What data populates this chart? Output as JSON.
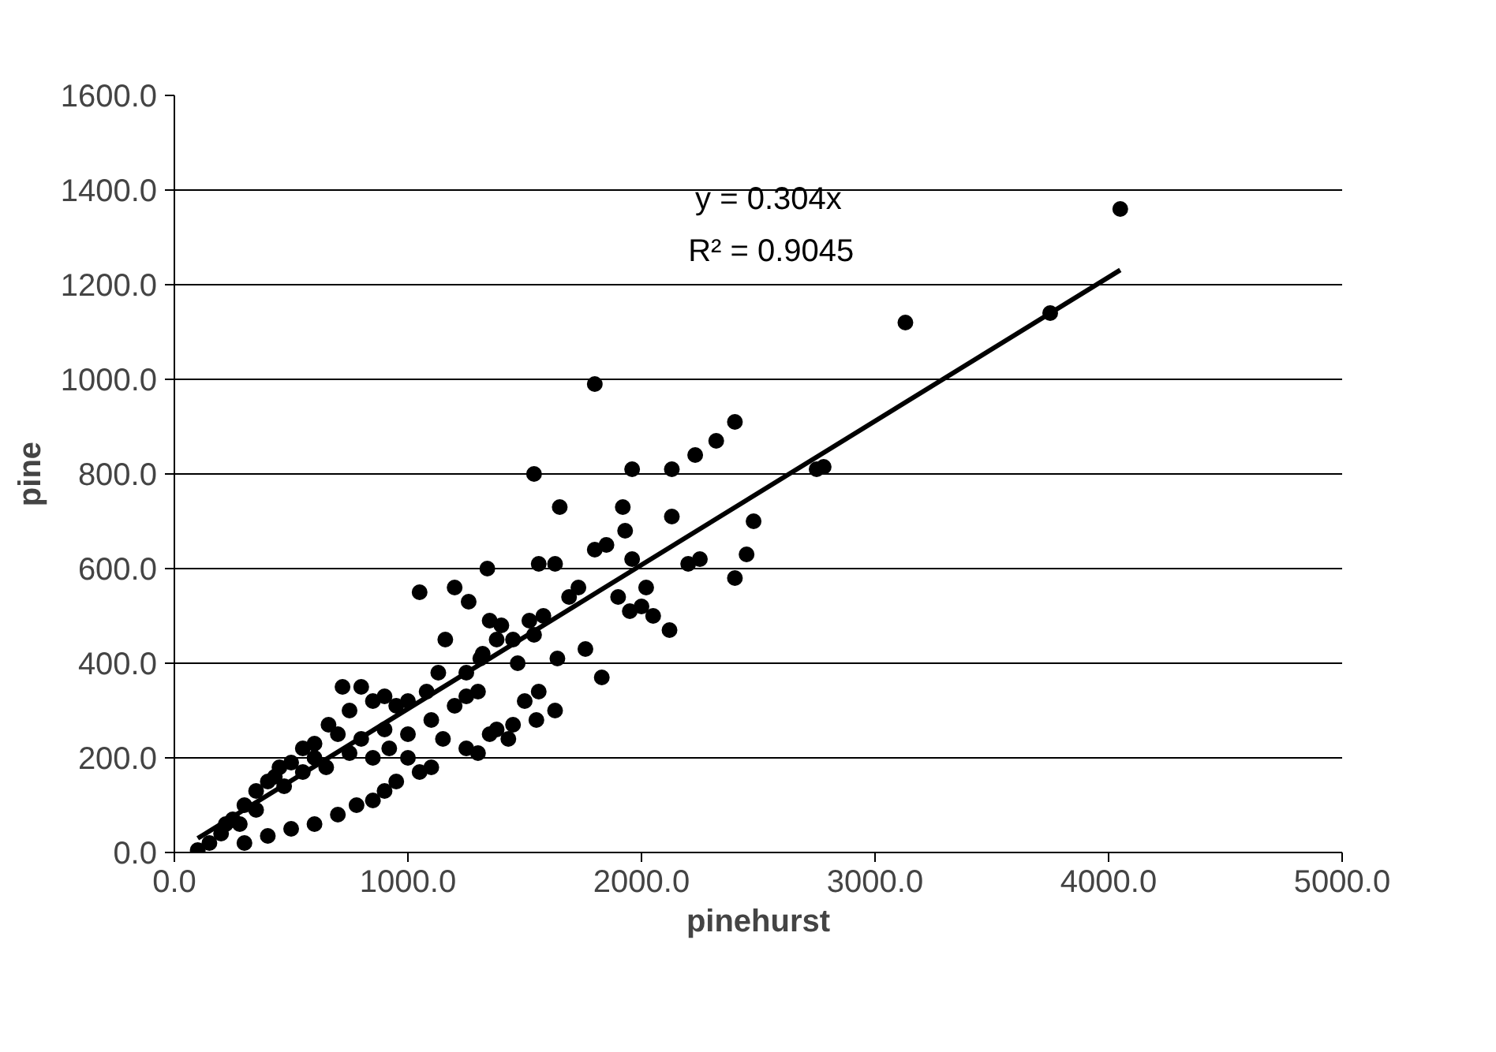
{
  "chart_data": {
    "type": "scatter",
    "xlabel": "pinehurst",
    "ylabel": "pine",
    "annotations": [
      "y = 0.304x",
      "R² = 0.9045"
    ],
    "xlim": [
      0,
      5000
    ],
    "ylim": [
      0,
      1600
    ],
    "xticks": [
      {
        "value": 0,
        "label": "0.0"
      },
      {
        "value": 1000,
        "label": "1000.0"
      },
      {
        "value": 2000,
        "label": "2000.0"
      },
      {
        "value": 3000,
        "label": "3000.0"
      },
      {
        "value": 4000,
        "label": "4000.0"
      },
      {
        "value": 5000,
        "label": "5000.0"
      }
    ],
    "yticks": [
      {
        "value": 0,
        "label": "0.0"
      },
      {
        "value": 200,
        "label": "200.0"
      },
      {
        "value": 400,
        "label": "400.0"
      },
      {
        "value": 600,
        "label": "600.0"
      },
      {
        "value": 800,
        "label": "800.0"
      },
      {
        "value": 1000,
        "label": "1000.0"
      },
      {
        "value": 1200,
        "label": "1200.0"
      },
      {
        "value": 1400,
        "label": "1400.0"
      },
      {
        "value": 1600,
        "label": "1600.0"
      }
    ],
    "grid": "y",
    "marker": "circle",
    "series": [
      {
        "color": "#000000",
        "x": [
          4050,
          3750,
          3130,
          2780,
          2750,
          1800,
          2400,
          2320,
          2230,
          2130,
          1960,
          1540,
          1920,
          1650,
          2480,
          2130,
          1930,
          1850,
          1800,
          1560,
          1630,
          1960,
          2200,
          2250,
          2450,
          2400,
          1050,
          1200,
          1340,
          1730,
          1690,
          2020,
          2000,
          2050,
          2120,
          1950,
          1900,
          1580,
          1520,
          1400,
          1450,
          1470,
          1540,
          1830,
          1760,
          1640,
          1560,
          1630,
          1550,
          1450,
          1380,
          1500,
          1300,
          1250,
          1200,
          1250,
          1310,
          1320,
          1380,
          1350,
          1260,
          1160,
          1130,
          1080,
          1000,
          950,
          900,
          850,
          720,
          800,
          750,
          660,
          700,
          600,
          550,
          500,
          450,
          400,
          350,
          300,
          250,
          200,
          150,
          100,
          1300,
          1250,
          1430,
          1350,
          1100,
          1050,
          950,
          900,
          850,
          780,
          700,
          600,
          500,
          400,
          300,
          1000,
          1100,
          900,
          800,
          600,
          550,
          650,
          470,
          430,
          850,
          750,
          920,
          1000,
          1150,
          350,
          280,
          220
        ],
        "values": [
          1360,
          1140,
          1120,
          815,
          810,
          990,
          910,
          870,
          840,
          810,
          810,
          800,
          730,
          730,
          700,
          710,
          680,
          650,
          640,
          610,
          610,
          620,
          610,
          620,
          630,
          580,
          550,
          560,
          600,
          560,
          540,
          560,
          520,
          500,
          470,
          510,
          540,
          500,
          490,
          480,
          450,
          400,
          460,
          370,
          430,
          410,
          340,
          300,
          280,
          270,
          260,
          320,
          340,
          330,
          310,
          380,
          410,
          420,
          450,
          490,
          530,
          450,
          380,
          340,
          320,
          310,
          330,
          320,
          350,
          350,
          300,
          270,
          250,
          230,
          220,
          190,
          180,
          150,
          130,
          100,
          70,
          40,
          20,
          5,
          210,
          220,
          240,
          250,
          180,
          170,
          150,
          130,
          110,
          100,
          80,
          60,
          50,
          35,
          20,
          250,
          280,
          260,
          240,
          200,
          170,
          180,
          140,
          160,
          200,
          210,
          220,
          200,
          240,
          90,
          60,
          60
        ]
      },
      {
        "type": "line",
        "color": "#000000",
        "marker": "none",
        "x": [
          100,
          4050
        ],
        "values": [
          30,
          1231
        ]
      }
    ]
  }
}
